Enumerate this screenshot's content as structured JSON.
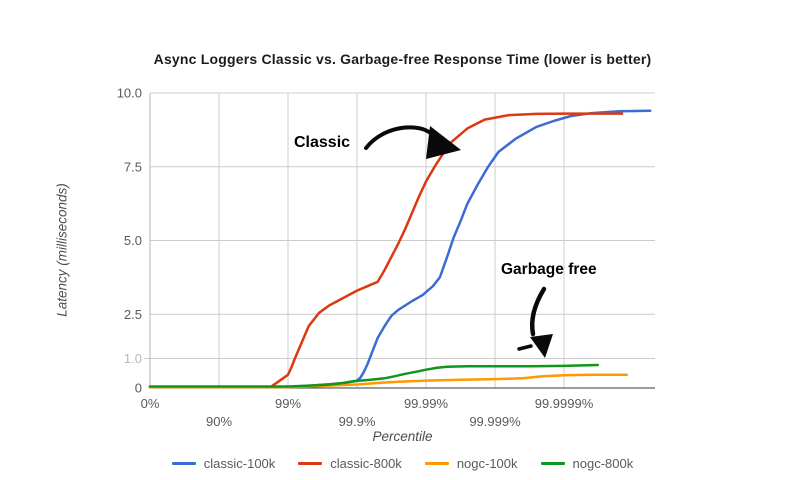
{
  "chart_data": {
    "type": "line",
    "title": "Async Loggers Classic vs. Garbage-free Response Time (lower is better)",
    "xlabel": "Percentile",
    "ylabel": "Latency (milliseconds)",
    "ylim": [
      0,
      10
    ],
    "x_unit": "nines: n = -log10(1-percentile), 0%=0, 90%=1, 99%=2, 99.9%=3, 99.99%=4, 99.999%=5, 99.9999%=6",
    "grid": true,
    "legend_position": "bottom",
    "x_ticks": [
      {
        "n": 0,
        "label": "0%",
        "row": 1
      },
      {
        "n": 1,
        "label": "90%",
        "row": 2
      },
      {
        "n": 2,
        "label": "99%",
        "row": 1
      },
      {
        "n": 3,
        "label": "99.9%",
        "row": 2
      },
      {
        "n": 4,
        "label": "99.99%",
        "row": 1
      },
      {
        "n": 5,
        "label": "99.999%",
        "row": 2
      },
      {
        "n": 6,
        "label": "99.9999%",
        "row": 1
      }
    ],
    "y_ticks": [
      {
        "v": 0,
        "label": "0",
        "color": "#5a5a5a"
      },
      {
        "v": 1,
        "label": "1.0",
        "color": "#b7b7b7"
      },
      {
        "v": 2.5,
        "label": "2.5",
        "color": "#5a5a5a"
      },
      {
        "v": 5,
        "label": "5.0",
        "color": "#5a5a5a"
      },
      {
        "v": 7.5,
        "label": "7.5",
        "color": "#5a5a5a"
      },
      {
        "v": 10,
        "label": "10.0",
        "color": "#5a5a5a"
      }
    ],
    "series": [
      {
        "name": "classic-100k",
        "color": "#3B6CD4",
        "points": [
          [
            0,
            0.03
          ],
          [
            0.5,
            0.03
          ],
          [
            1,
            0.03
          ],
          [
            1.5,
            0.03
          ],
          [
            2,
            0.04
          ],
          [
            2.2,
            0.05
          ],
          [
            2.4,
            0.09
          ],
          [
            2.6,
            0.13
          ],
          [
            2.8,
            0.17
          ],
          [
            3.0,
            0.25
          ],
          [
            3.05,
            0.35
          ],
          [
            3.1,
            0.55
          ],
          [
            3.15,
            0.8
          ],
          [
            3.2,
            1.1
          ],
          [
            3.3,
            1.7
          ],
          [
            3.4,
            2.1
          ],
          [
            3.5,
            2.45
          ],
          [
            3.6,
            2.65
          ],
          [
            3.8,
            2.95
          ],
          [
            3.95,
            3.15
          ],
          [
            4.1,
            3.45
          ],
          [
            4.2,
            3.75
          ],
          [
            4.3,
            4.4
          ],
          [
            4.4,
            5.1
          ],
          [
            4.5,
            5.65
          ],
          [
            4.6,
            6.25
          ],
          [
            4.75,
            6.9
          ],
          [
            4.9,
            7.5
          ],
          [
            5.05,
            8.0
          ],
          [
            5.3,
            8.45
          ],
          [
            5.6,
            8.85
          ],
          [
            5.85,
            9.05
          ],
          [
            6.1,
            9.22
          ],
          [
            6.4,
            9.32
          ],
          [
            6.8,
            9.38
          ],
          [
            7.25,
            9.4
          ]
        ]
      },
      {
        "name": "classic-800k",
        "color": "#DC3912",
        "points": [
          [
            0,
            0.03
          ],
          [
            0.5,
            0.03
          ],
          [
            1,
            0.03
          ],
          [
            1.5,
            0.03
          ],
          [
            1.75,
            0.04
          ],
          [
            1.82,
            0.15
          ],
          [
            1.9,
            0.28
          ],
          [
            2.0,
            0.45
          ],
          [
            2.05,
            0.7
          ],
          [
            2.1,
            1.0
          ],
          [
            2.2,
            1.55
          ],
          [
            2.3,
            2.1
          ],
          [
            2.45,
            2.55
          ],
          [
            2.6,
            2.8
          ],
          [
            2.8,
            3.05
          ],
          [
            3.0,
            3.3
          ],
          [
            3.15,
            3.45
          ],
          [
            3.3,
            3.6
          ],
          [
            3.4,
            4.0
          ],
          [
            3.5,
            4.45
          ],
          [
            3.6,
            4.9
          ],
          [
            3.7,
            5.4
          ],
          [
            3.8,
            5.95
          ],
          [
            3.9,
            6.5
          ],
          [
            4.0,
            7.0
          ],
          [
            4.15,
            7.6
          ],
          [
            4.35,
            8.3
          ],
          [
            4.6,
            8.8
          ],
          [
            4.85,
            9.1
          ],
          [
            5.2,
            9.25
          ],
          [
            5.6,
            9.29
          ],
          [
            6.0,
            9.3
          ],
          [
            6.84,
            9.3
          ]
        ]
      },
      {
        "name": "nogc-100k",
        "color": "#FF9900",
        "points": [
          [
            0,
            0.03
          ],
          [
            1,
            0.03
          ],
          [
            2,
            0.03
          ],
          [
            2.3,
            0.05
          ],
          [
            2.6,
            0.08
          ],
          [
            3.0,
            0.12
          ],
          [
            3.3,
            0.17
          ],
          [
            3.6,
            0.21
          ],
          [
            4.0,
            0.25
          ],
          [
            4.5,
            0.28
          ],
          [
            5.0,
            0.3
          ],
          [
            5.4,
            0.33
          ],
          [
            5.7,
            0.4
          ],
          [
            6.0,
            0.43
          ],
          [
            6.4,
            0.45
          ],
          [
            6.91,
            0.45
          ]
        ]
      },
      {
        "name": "nogc-800k",
        "color": "#109618",
        "points": [
          [
            0,
            0.05
          ],
          [
            1,
            0.05
          ],
          [
            2,
            0.05
          ],
          [
            2.3,
            0.08
          ],
          [
            2.6,
            0.12
          ],
          [
            2.8,
            0.17
          ],
          [
            3.0,
            0.24
          ],
          [
            3.2,
            0.28
          ],
          [
            3.4,
            0.33
          ],
          [
            3.55,
            0.4
          ],
          [
            3.7,
            0.48
          ],
          [
            3.85,
            0.55
          ],
          [
            4.0,
            0.62
          ],
          [
            4.15,
            0.68
          ],
          [
            4.3,
            0.72
          ],
          [
            4.6,
            0.74
          ],
          [
            5.0,
            0.74
          ],
          [
            5.5,
            0.74
          ],
          [
            6.0,
            0.75
          ],
          [
            6.49,
            0.78
          ]
        ]
      }
    ],
    "annotations": [
      {
        "text": "Classic",
        "points_to": "classic-800k / classic-100k curves"
      },
      {
        "text": "Garbage free",
        "points_to": "nogc-800k / nogc-100k curves"
      }
    ],
    "colors": {
      "grid": "#cccccc",
      "baseline": "#3a3a3a",
      "axis_line": "#b3b3b3",
      "annotation": "#000000"
    }
  }
}
